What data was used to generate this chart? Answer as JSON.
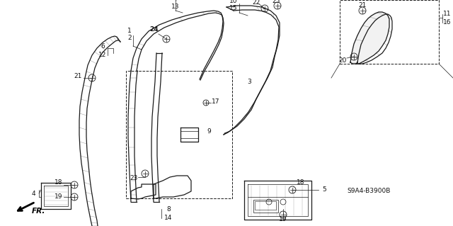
{
  "diagram_code": "S9A4-B3900B",
  "bg_color": "#ffffff",
  "line_color": "#1a1a1a",
  "text_color": "#111111",
  "figsize": [
    6.4,
    3.19
  ],
  "dpi": 100
}
